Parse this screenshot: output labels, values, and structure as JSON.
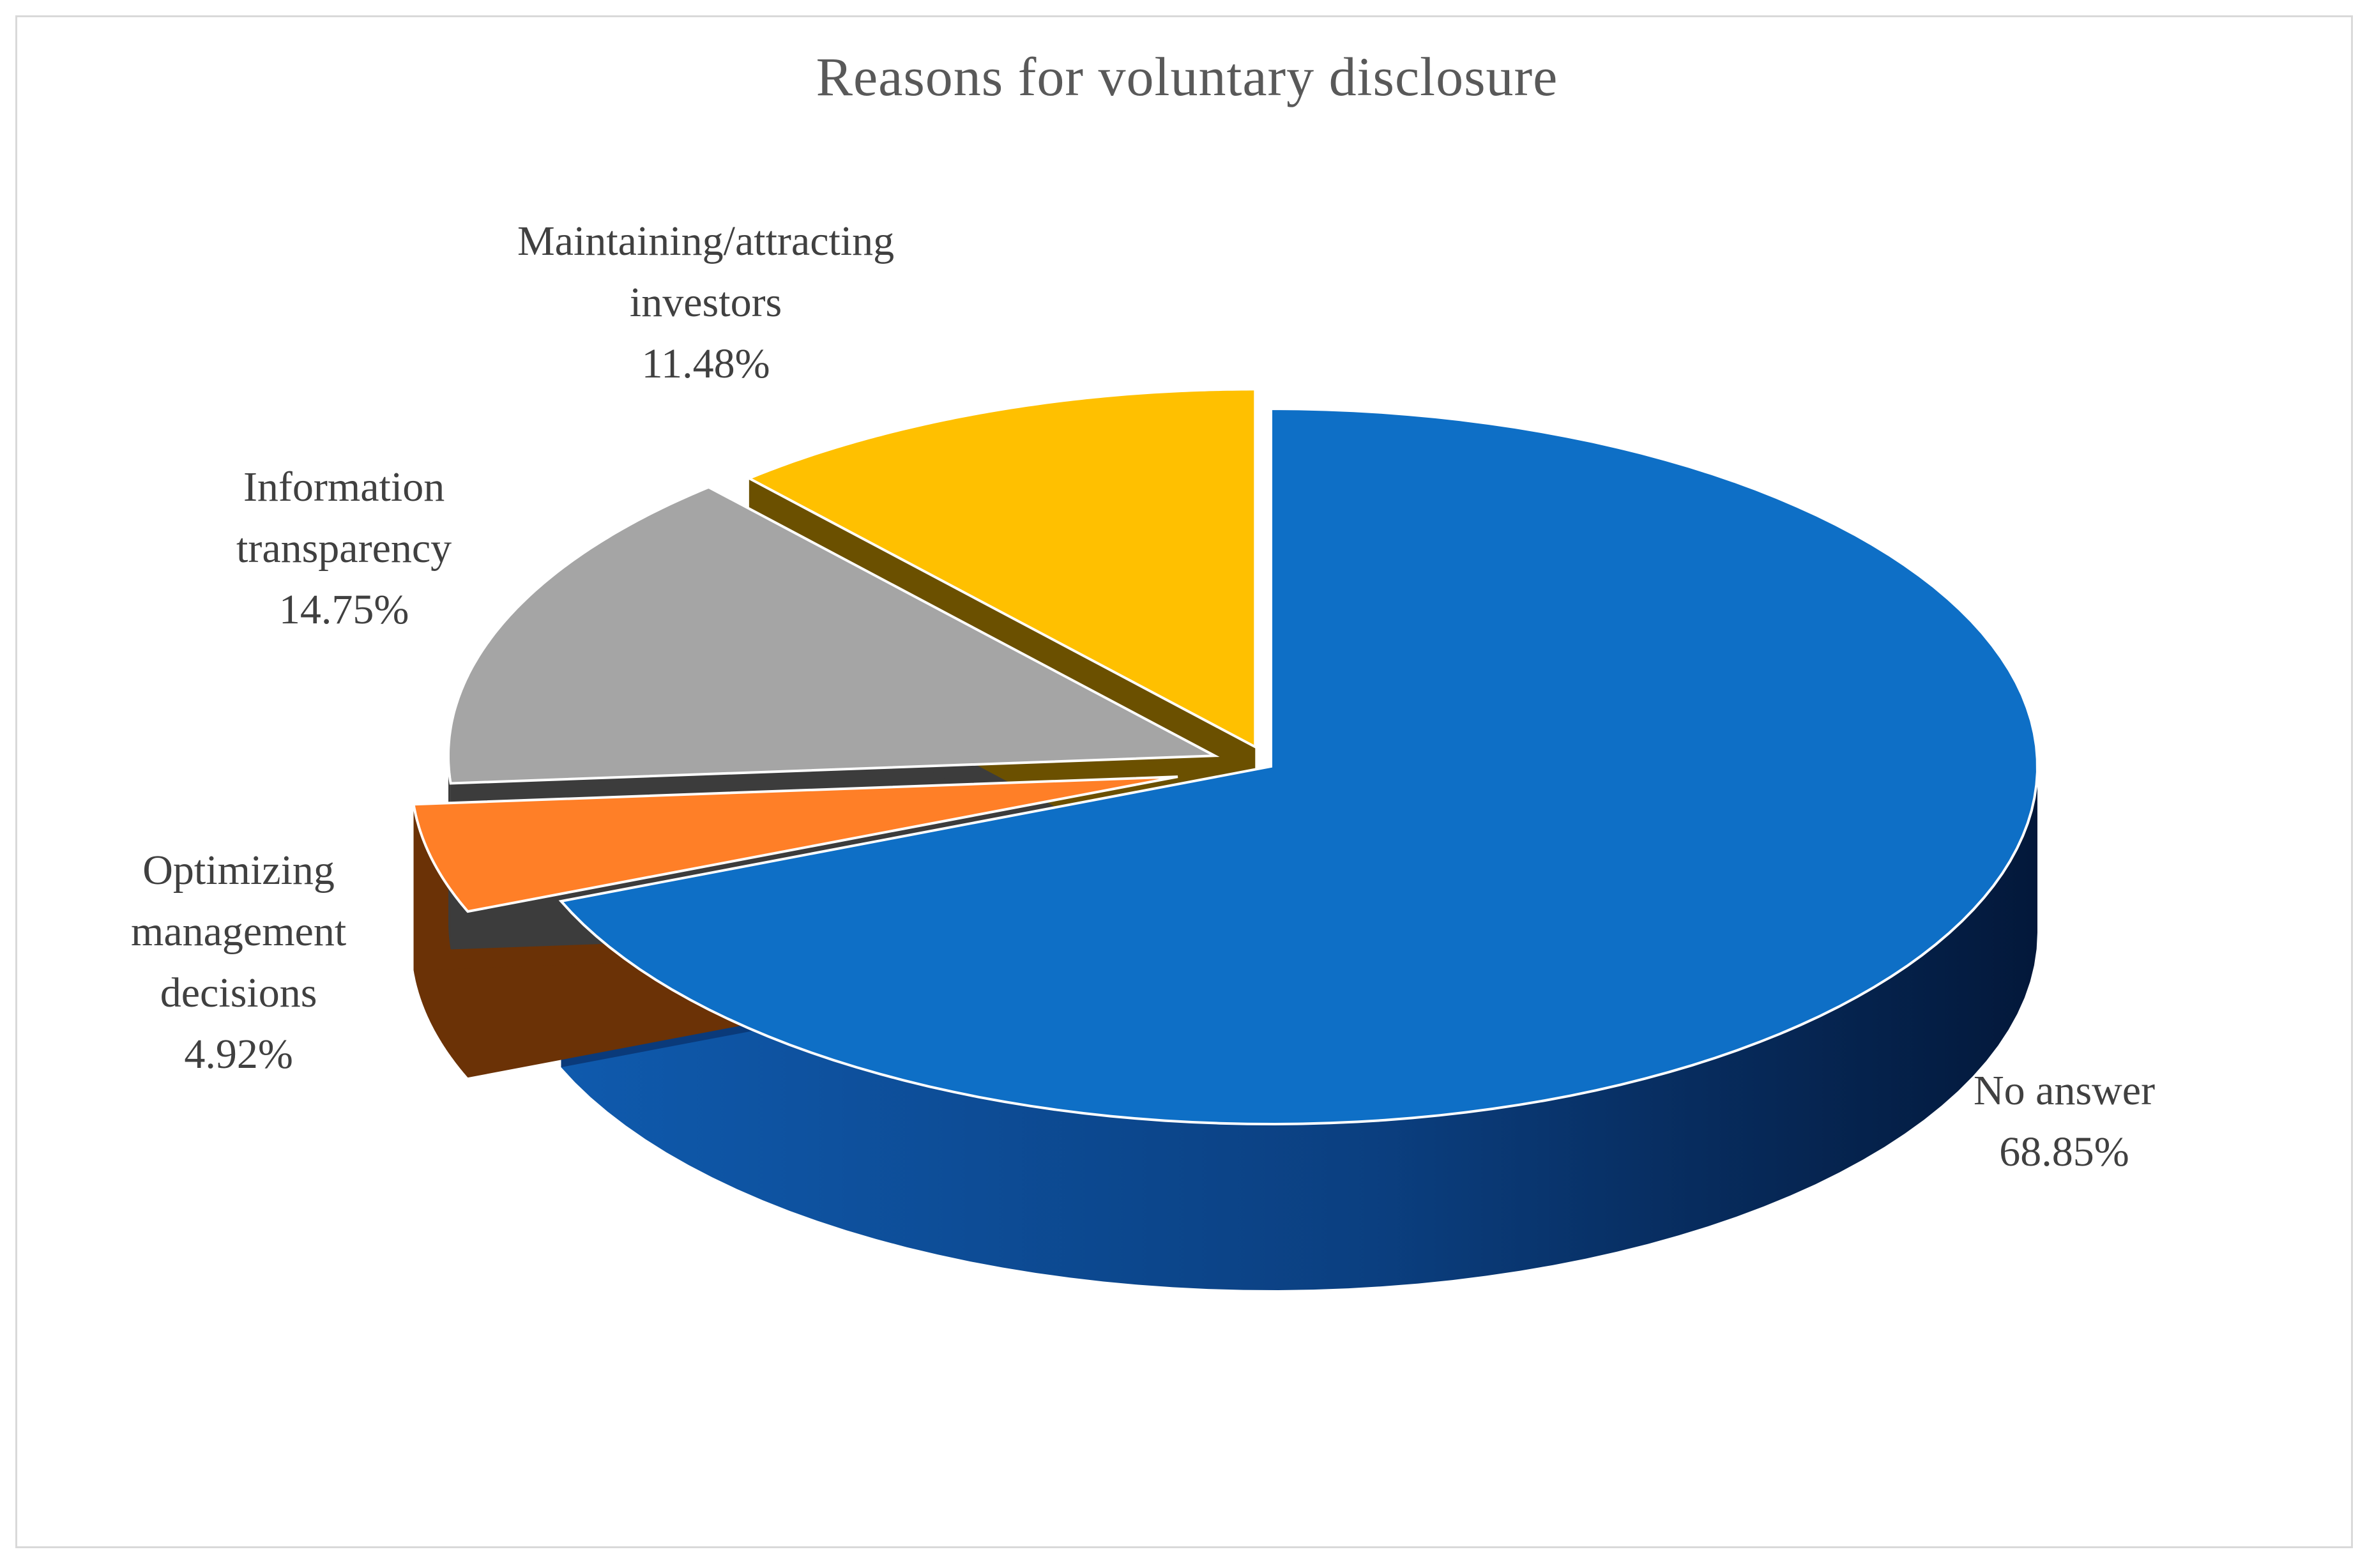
{
  "chart_data": {
    "type": "pie",
    "title": "Reasons for voluntary disclosure",
    "slices": [
      {
        "label": "No answer",
        "label_lines": [
          "No answer"
        ],
        "value": 68.85,
        "value_label": "68.85%",
        "color": "#0E6FC6",
        "side_color": "#0A3A7A",
        "exploded": false
      },
      {
        "label": "Optimizing management decisions",
        "label_lines": [
          "Optimizing",
          "management",
          "decisions"
        ],
        "value": 4.92,
        "value_label": "4.92%",
        "color": "#FF7F27",
        "side_color": "#6B3206",
        "exploded": true
      },
      {
        "label": "Information transparency",
        "label_lines": [
          "Information",
          "transparency"
        ],
        "value": 14.75,
        "value_label": "14.75%",
        "color": "#A5A5A5",
        "side_color": "#3C3C3C",
        "exploded": true
      },
      {
        "label": "Maintaining/attracting investors",
        "label_lines": [
          "Maintaining/attracting",
          "investors"
        ],
        "value": 11.48,
        "value_label": "11.48%",
        "color": "#FFC000",
        "side_color": "#6B5000",
        "exploded": true
      }
    ],
    "legend": "none",
    "style": "3d-exploded"
  }
}
